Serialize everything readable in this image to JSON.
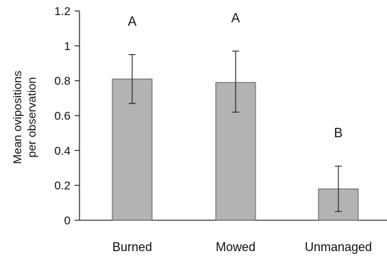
{
  "chart_data": {
    "type": "bar",
    "title": "",
    "xlabel": "",
    "ylabel": [
      "Mean ovipositions",
      "per observation"
    ],
    "ylim": [
      0,
      1.2
    ],
    "yticks": [
      0,
      0.2,
      0.4,
      0.6,
      0.8,
      1,
      1.2
    ],
    "ytick_labels": [
      "0",
      "0.2",
      "0.4",
      "0.6",
      "0.8",
      "1",
      "1.2"
    ],
    "categories": [
      "Burned",
      "Mowed",
      "Unmanaged"
    ],
    "values": [
      0.81,
      0.79,
      0.18
    ],
    "error_low": [
      0.67,
      0.62,
      0.05
    ],
    "error_high": [
      0.95,
      0.97,
      0.31
    ],
    "significance_labels": [
      "A",
      "A",
      "B"
    ],
    "bar_color": "#b3b3b3",
    "bar_edge_color": "#5a5a5a",
    "grid": false,
    "legend": "none"
  }
}
